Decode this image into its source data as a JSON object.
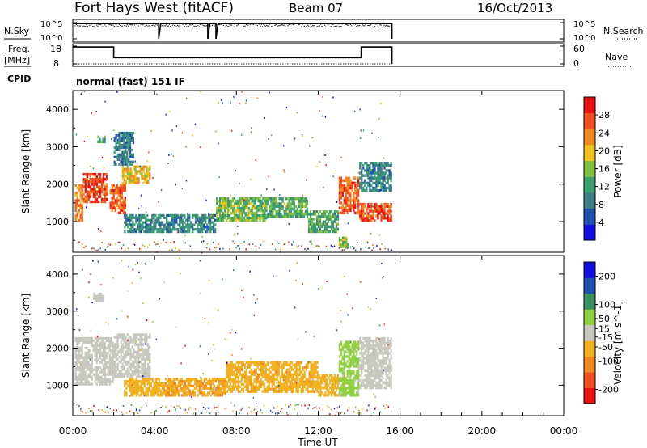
{
  "header": {
    "station": "Fort Hays West (fitACF)",
    "beam": "Beam 07",
    "date": "16/Oct/2013"
  },
  "noise_panel": {
    "left_label": "N.Sky",
    "left_ticks": [
      "10^5",
      "10^0"
    ],
    "right_ticks": [
      "10^5",
      "10^0"
    ],
    "right_label": "N.Search"
  },
  "freq_panel": {
    "left_label_1": "Freq.",
    "left_label_2": "[MHz]",
    "left_ticks": [
      "18",
      "8"
    ],
    "right_ticks": [
      "60",
      "0"
    ],
    "right_label": "Nave",
    "cpid_label": "CPID",
    "program_name": "normal (fast) 151 IF"
  },
  "x_axis": {
    "label": "Time UT",
    "ticks": [
      "00:00",
      "04:00",
      "08:00",
      "12:00",
      "16:00",
      "20:00",
      "00:00"
    ]
  },
  "colors": {
    "power_scale": [
      "#1010e0",
      "#2050b0",
      "#3e7e8a",
      "#3aa070",
      "#80c040",
      "#f0c020",
      "#f08a20",
      "#f05020",
      "#e81010"
    ],
    "velocity_scale": [
      "#e81010",
      "#f05020",
      "#f08a20",
      "#f0b020",
      "#c8c8c0",
      "#90d040",
      "#3a9060",
      "#2050b0",
      "#1010e0"
    ]
  },
  "chart_data": [
    {
      "type": "line",
      "title": "Fort Hays West (fitACF)",
      "subtitle": "Beam 07",
      "ylabel": "N.Sky",
      "y2label": "N.Search",
      "xlabel": "",
      "ylim": [
        1,
        100000
      ],
      "yscale": "log",
      "x_range_hours": [
        0,
        24
      ],
      "series": [
        {
          "x": [
            0,
            4.2,
            4.2,
            4.3,
            6.6,
            6.6,
            6.7,
            7.0,
            7.0,
            7.1,
            15.6,
            15.6
          ],
          "y": [
            50000,
            50000,
            1,
            50000,
            50000,
            1,
            50000,
            50000,
            1,
            50000,
            50000,
            1
          ]
        }
      ]
    },
    {
      "type": "line",
      "ylabel": "Freq. [MHz]",
      "y2label": "Nave",
      "ylim": [
        8,
        18
      ],
      "y2lim": [
        0,
        60
      ],
      "x_range_hours": [
        0,
        24
      ],
      "series": [
        {
          "x": [
            0,
            2.0,
            2.0,
            14.1,
            14.1,
            15.6,
            15.6
          ],
          "y": [
            17.5,
            17.5,
            11.5,
            11.5,
            17.5,
            17.5,
            8
          ]
        }
      ]
    },
    {
      "type": "heatmap",
      "ylabel": "Slant Range [km]",
      "xlabel": "",
      "ylim": [
        180,
        4500
      ],
      "yticks": [
        1000,
        2000,
        3000,
        4000
      ],
      "colorbar_label": "Power [dB]",
      "colorbar_ticks": [
        4,
        8,
        12,
        16,
        20,
        24,
        28
      ],
      "colorbar_range": [
        0,
        32
      ],
      "regions": [
        {
          "t0": 0.1,
          "t1": 0.5,
          "r0": 1000,
          "r1": 2000,
          "value": 24
        },
        {
          "t0": 0.5,
          "t1": 1.7,
          "r0": 1500,
          "r1": 2300,
          "value": 27
        },
        {
          "t0": 1.2,
          "t1": 1.6,
          "r0": 3100,
          "r1": 3300,
          "value": 12
        },
        {
          "t0": 1.8,
          "t1": 2.6,
          "r0": 1200,
          "r1": 2000,
          "value": 26
        },
        {
          "t0": 2.4,
          "t1": 3.8,
          "r0": 2000,
          "r1": 2500,
          "value": 20
        },
        {
          "t0": 2.0,
          "t1": 3.0,
          "r0": 2500,
          "r1": 3400,
          "value": 9
        },
        {
          "t0": 2.5,
          "t1": 7.0,
          "r0": 700,
          "r1": 1200,
          "value": 10
        },
        {
          "t0": 7.0,
          "t1": 9.5,
          "r0": 1000,
          "r1": 1650,
          "value": 15
        },
        {
          "t0": 9.5,
          "t1": 11.5,
          "r0": 1100,
          "r1": 1650,
          "value": 14
        },
        {
          "t0": 11.5,
          "t1": 13.0,
          "r0": 700,
          "r1": 1300,
          "value": 13
        },
        {
          "t0": 13.0,
          "t1": 13.5,
          "r0": 300,
          "r1": 600,
          "value": 16
        },
        {
          "t0": 13.0,
          "t1": 14.0,
          "r0": 1200,
          "r1": 2200,
          "value": 26
        },
        {
          "t0": 14.0,
          "t1": 15.6,
          "r0": 1000,
          "r1": 1500,
          "value": 27
        },
        {
          "t0": 14.0,
          "t1": 15.6,
          "r0": 1800,
          "r1": 2600,
          "value": 10
        }
      ]
    },
    {
      "type": "heatmap",
      "ylabel": "Slant Range [km]",
      "xlabel": "Time UT",
      "ylim": [
        180,
        4500
      ],
      "yticks": [
        1000,
        2000,
        3000,
        4000
      ],
      "colorbar_label": "Velocity [m s^-1]",
      "colorbar_ticks": [
        -200,
        -100,
        -50,
        -15,
        15,
        50,
        100,
        200
      ],
      "colorbar_range": [
        -250,
        250
      ],
      "regions": [
        {
          "t0": 0.1,
          "t1": 2.0,
          "r0": 1000,
          "r1": 2300,
          "value": 0
        },
        {
          "t0": 1.0,
          "t1": 1.5,
          "r0": 3250,
          "r1": 3500,
          "value": 0
        },
        {
          "t0": 2.0,
          "t1": 3.8,
          "r0": 1200,
          "r1": 2400,
          "value": 0
        },
        {
          "t0": 2.5,
          "t1": 4.5,
          "r0": 700,
          "r1": 1200,
          "value": -60
        },
        {
          "t0": 4.5,
          "t1": 7.5,
          "r0": 700,
          "r1": 1200,
          "value": -80
        },
        {
          "t0": 7.5,
          "t1": 12.0,
          "r0": 800,
          "r1": 1650,
          "value": -70
        },
        {
          "t0": 12.0,
          "t1": 13.0,
          "r0": 700,
          "r1": 1300,
          "value": -50
        },
        {
          "t0": 13.0,
          "t1": 14.0,
          "r0": 700,
          "r1": 2200,
          "value": 40
        },
        {
          "t0": 14.0,
          "t1": 15.6,
          "r0": 900,
          "r1": 2300,
          "value": 0
        }
      ]
    }
  ]
}
